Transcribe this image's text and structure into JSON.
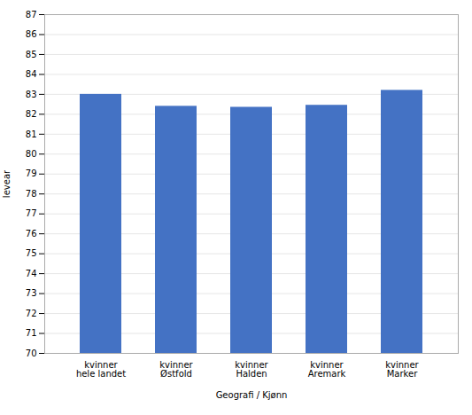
{
  "chart_data": {
    "type": "bar",
    "categories": [
      "kvinner\nhele landet",
      "kvinner\nØstfold",
      "kvinner\nHalden",
      "kvinner\nAremark",
      "kvinner\nMarker"
    ],
    "values": [
      83.0,
      82.4,
      82.35,
      82.45,
      83.2
    ],
    "color": "#4472c4",
    "xlabel": "Geografi / Kjønn",
    "ylabel": "levear",
    "ylim": [
      70,
      87
    ],
    "yticks": [
      70,
      71,
      72,
      73,
      74,
      75,
      76,
      77,
      78,
      79,
      80,
      81,
      82,
      83,
      84,
      85,
      86,
      87
    ],
    "grid": true
  }
}
